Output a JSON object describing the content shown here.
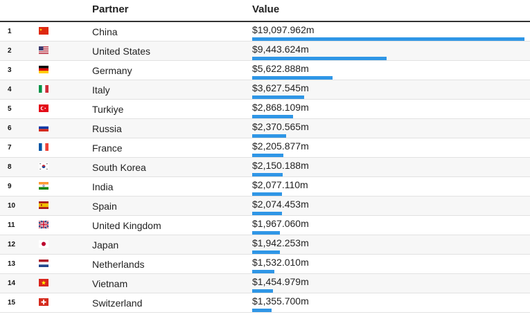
{
  "header": {
    "partner_label": "Partner",
    "value_label": "Value"
  },
  "chart_data": {
    "type": "bar",
    "xlabel": "Value",
    "ylabel": "Partner",
    "ylim": [
      0,
      19097.962
    ],
    "bar_color": "#2f96e6",
    "rows": [
      {
        "rank": "1",
        "partner": "China",
        "value_label": "$19,097.962m",
        "value": 19097.962,
        "flag_icon": "china-flag-icon"
      },
      {
        "rank": "2",
        "partner": "United States",
        "value_label": "$9,443.624m",
        "value": 9443.624,
        "flag_icon": "united-states-flag-icon"
      },
      {
        "rank": "3",
        "partner": "Germany",
        "value_label": "$5,622.888m",
        "value": 5622.888,
        "flag_icon": "germany-flag-icon"
      },
      {
        "rank": "4",
        "partner": "Italy",
        "value_label": "$3,627.545m",
        "value": 3627.545,
        "flag_icon": "italy-flag-icon"
      },
      {
        "rank": "5",
        "partner": "Turkiye",
        "value_label": "$2,868.109m",
        "value": 2868.109,
        "flag_icon": "turkiye-flag-icon"
      },
      {
        "rank": "6",
        "partner": "Russia",
        "value_label": "$2,370.565m",
        "value": 2370.565,
        "flag_icon": "russia-flag-icon"
      },
      {
        "rank": "7",
        "partner": "France",
        "value_label": "$2,205.877m",
        "value": 2205.877,
        "flag_icon": "france-flag-icon"
      },
      {
        "rank": "8",
        "partner": "South Korea",
        "value_label": "$2,150.188m",
        "value": 2150.188,
        "flag_icon": "south-korea-flag-icon"
      },
      {
        "rank": "9",
        "partner": "India",
        "value_label": "$2,077.110m",
        "value": 2077.11,
        "flag_icon": "india-flag-icon"
      },
      {
        "rank": "10",
        "partner": "Spain",
        "value_label": "$2,074.453m",
        "value": 2074.453,
        "flag_icon": "spain-flag-icon"
      },
      {
        "rank": "11",
        "partner": "United Kingdom",
        "value_label": "$1,967.060m",
        "value": 1967.06,
        "flag_icon": "united-kingdom-flag-icon"
      },
      {
        "rank": "12",
        "partner": "Japan",
        "value_label": "$1,942.253m",
        "value": 1942.253,
        "flag_icon": "japan-flag-icon"
      },
      {
        "rank": "13",
        "partner": "Netherlands",
        "value_label": "$1,532.010m",
        "value": 1532.01,
        "flag_icon": "netherlands-flag-icon"
      },
      {
        "rank": "14",
        "partner": "Vietnam",
        "value_label": "$1,454.979m",
        "value": 1454.979,
        "flag_icon": "vietnam-flag-icon"
      },
      {
        "rank": "15",
        "partner": "Switzerland",
        "value_label": "$1,355.700m",
        "value": 1355.7,
        "flag_icon": "switzerland-flag-icon"
      }
    ]
  }
}
